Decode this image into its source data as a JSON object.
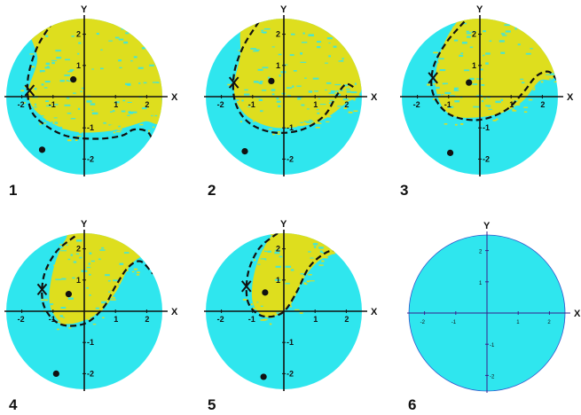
{
  "colors": {
    "cyan": "#2fe6ee",
    "yellow": "#dede1e",
    "axis": "#111111",
    "curve": "#111111",
    "disk_edge": "#3355cc",
    "axis6": "#3a1f8c"
  },
  "axes": {
    "x_label": "X",
    "y_label": "Y",
    "x_ticks": [
      "-2",
      "-1",
      "1",
      "2"
    ],
    "y_ticks": [
      "2",
      "1",
      "-1",
      "-2"
    ],
    "range": [
      -2.5,
      2.5
    ]
  },
  "panels": [
    {
      "number": "1",
      "yellow_region": [
        [
          -1.7,
          2.3
        ],
        [
          -1.5,
          1.2
        ],
        [
          -1.8,
          0.1
        ],
        [
          -1.4,
          -0.6
        ],
        [
          -0.4,
          -1.1
        ],
        [
          0.8,
          -1.1
        ],
        [
          1.9,
          -0.8
        ],
        [
          2.5,
          -0.6
        ],
        [
          2.5,
          2.5
        ],
        [
          -0.2,
          2.5
        ]
      ],
      "curve": [
        [
          -1.0,
          2.4
        ],
        [
          -1.5,
          1.6
        ],
        [
          -1.8,
          0.6
        ],
        [
          -1.75,
          -0.3
        ],
        [
          -1.4,
          -0.8
        ],
        [
          -0.6,
          -1.25
        ],
        [
          0.4,
          -1.35
        ],
        [
          1.2,
          -1.25
        ],
        [
          1.6,
          -1.05
        ],
        [
          2.05,
          -1.15
        ],
        [
          2.3,
          -1.7
        ]
      ],
      "cross": [
        -1.75,
        0.2
      ],
      "dot_upper": [
        -0.35,
        0.55
      ],
      "dot_lower": [
        -1.35,
        -1.7
      ]
    },
    {
      "number": "2",
      "yellow_region": [
        [
          -1.3,
          2.3
        ],
        [
          -1.4,
          1.3
        ],
        [
          -1.6,
          0.2
        ],
        [
          -1.2,
          -0.6
        ],
        [
          -0.2,
          -1.0
        ],
        [
          1.1,
          -0.8
        ],
        [
          2.0,
          -0.2
        ],
        [
          2.5,
          0.3
        ],
        [
          2.5,
          2.5
        ],
        [
          -0.3,
          2.5
        ]
      ],
      "curve": [
        [
          -0.8,
          2.4
        ],
        [
          -1.3,
          1.6
        ],
        [
          -1.6,
          0.7
        ],
        [
          -1.55,
          -0.2
        ],
        [
          -1.1,
          -0.85
        ],
        [
          -0.3,
          -1.15
        ],
        [
          0.6,
          -1.05
        ],
        [
          1.3,
          -0.6
        ],
        [
          1.7,
          0.05
        ],
        [
          2.0,
          0.4
        ],
        [
          2.3,
          0.25
        ]
      ],
      "cross": [
        -1.6,
        0.45
      ],
      "dot_upper": [
        -0.4,
        0.5
      ],
      "dot_lower": [
        -1.25,
        -1.75
      ]
    },
    {
      "number": "3",
      "yellow_region": [
        [
          -0.8,
          2.3
        ],
        [
          -1.3,
          1.3
        ],
        [
          -1.4,
          0.2
        ],
        [
          -0.9,
          -0.6
        ],
        [
          0.4,
          -0.6
        ],
        [
          1.3,
          -0.2
        ],
        [
          1.9,
          0.5
        ],
        [
          2.4,
          0.7
        ],
        [
          2.5,
          2.5
        ],
        [
          -0.3,
          2.5
        ]
      ],
      "curve": [
        [
          -0.5,
          2.4
        ],
        [
          -1.1,
          1.7
        ],
        [
          -1.5,
          0.9
        ],
        [
          -1.5,
          0.1
        ],
        [
          -1.0,
          -0.55
        ],
        [
          -0.1,
          -0.75
        ],
        [
          0.8,
          -0.45
        ],
        [
          1.4,
          0.15
        ],
        [
          1.8,
          0.65
        ],
        [
          2.2,
          0.8
        ],
        [
          2.5,
          0.5
        ]
      ],
      "cross": [
        -1.5,
        0.6
      ],
      "dot_upper": [
        -0.35,
        0.45
      ],
      "dot_lower": [
        -0.95,
        -1.8
      ]
    },
    {
      "number": "4",
      "yellow_region": [
        [
          -0.6,
          2.3
        ],
        [
          -1.0,
          1.3
        ],
        [
          -1.1,
          0.2
        ],
        [
          -0.6,
          -0.4
        ],
        [
          0.4,
          -0.1
        ],
        [
          1.0,
          0.6
        ],
        [
          1.5,
          1.5
        ],
        [
          2.2,
          2.0
        ],
        [
          2.5,
          2.5
        ],
        [
          -0.2,
          2.5
        ]
      ],
      "curve": [
        [
          -0.3,
          2.4
        ],
        [
          -0.9,
          1.9
        ],
        [
          -1.3,
          1.1
        ],
        [
          -1.3,
          0.2
        ],
        [
          -0.8,
          -0.4
        ],
        [
          0.0,
          -0.4
        ],
        [
          0.6,
          0.1
        ],
        [
          1.0,
          0.8
        ],
        [
          1.4,
          1.4
        ],
        [
          1.8,
          1.6
        ],
        [
          2.2,
          1.2
        ]
      ],
      "cross": [
        -1.35,
        0.7
      ],
      "dot_upper": [
        -0.5,
        0.55
      ],
      "dot_lower": [
        -0.9,
        -2.0
      ]
    },
    {
      "number": "5",
      "yellow_region": [
        [
          -0.4,
          2.4
        ],
        [
          -0.9,
          1.4
        ],
        [
          -1.0,
          0.3
        ],
        [
          -0.5,
          -0.2
        ],
        [
          0.2,
          0.2
        ],
        [
          0.6,
          1.0
        ],
        [
          1.1,
          1.6
        ],
        [
          1.7,
          1.9
        ],
        [
          2.0,
          2.2
        ],
        [
          0.2,
          2.6
        ]
      ],
      "curve": [
        [
          -0.2,
          2.5
        ],
        [
          -0.8,
          2.0
        ],
        [
          -1.15,
          1.2
        ],
        [
          -1.15,
          0.3
        ],
        [
          -0.7,
          -0.15
        ],
        [
          -0.05,
          -0.05
        ],
        [
          0.4,
          0.6
        ],
        [
          0.8,
          1.4
        ],
        [
          1.3,
          1.85
        ],
        [
          1.7,
          1.95
        ],
        [
          2.0,
          1.7
        ]
      ],
      "cross": [
        -1.2,
        0.8
      ],
      "dot_upper": [
        -0.6,
        0.6
      ],
      "dot_lower": [
        -0.65,
        -2.1
      ]
    },
    {
      "number": "6",
      "yellow_region": [],
      "curve": [],
      "cross": null,
      "dot_upper": null,
      "dot_lower": null
    }
  ]
}
